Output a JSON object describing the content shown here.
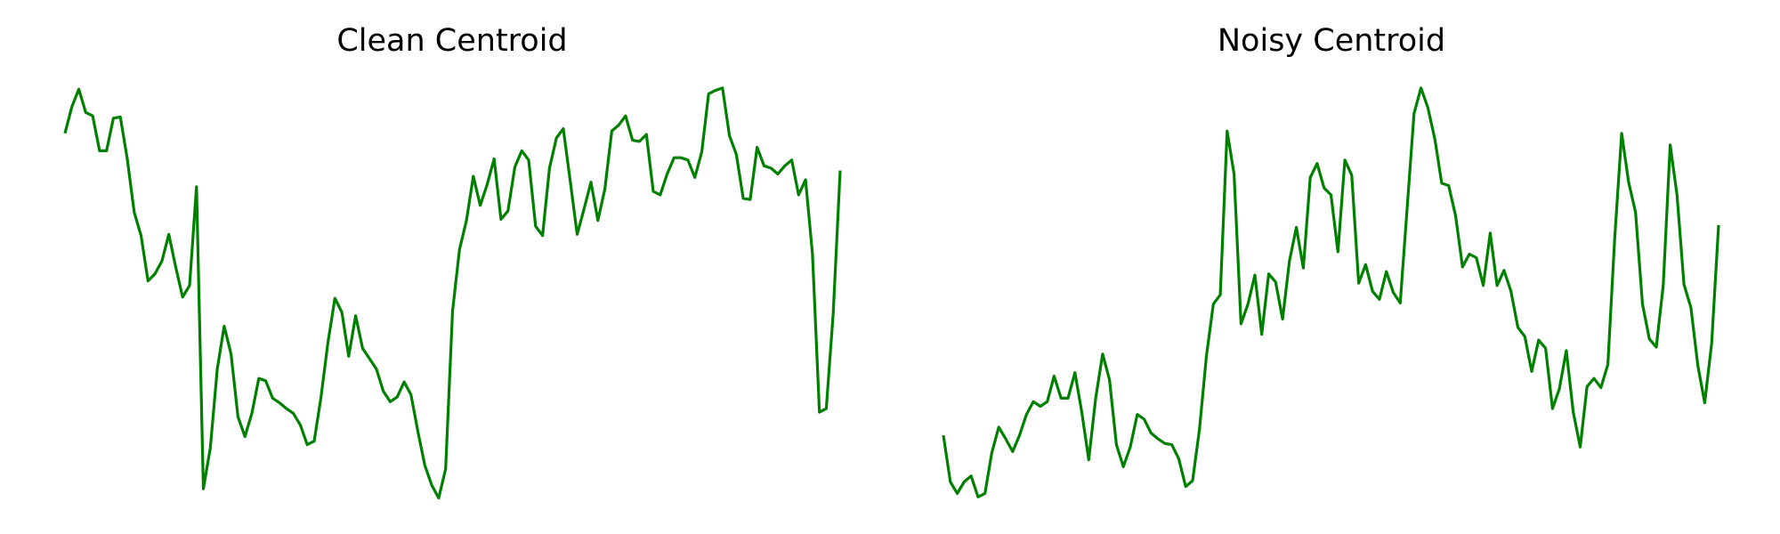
{
  "chart_data": [
    {
      "type": "line",
      "title": "Clean Centroid",
      "color": "#008000",
      "ylim": [
        0,
        380
      ],
      "values": [
        325,
        348,
        363,
        343,
        340,
        310,
        310,
        338,
        339,
        303,
        257,
        237,
        198,
        204,
        215,
        238,
        210,
        184,
        194,
        279,
        19,
        54,
        122,
        159,
        135,
        81,
        64,
        84,
        114,
        112,
        97,
        93,
        88,
        84,
        74,
        57,
        60,
        98,
        145,
        183,
        171,
        133,
        168,
        140,
        131,
        122,
        103,
        94,
        98,
        111,
        100,
        68,
        39,
        22,
        11,
        36,
        172,
        225,
        250,
        288,
        263,
        281,
        303,
        251,
        258,
        296,
        310,
        302,
        245,
        237,
        295,
        321,
        329,
        284,
        238,
        260,
        283,
        250,
        277,
        327,
        332,
        340,
        319,
        318,
        324,
        275,
        272,
        290,
        304,
        304,
        302,
        287,
        309,
        359,
        362,
        364,
        323,
        307,
        269,
        268,
        313,
        297,
        295,
        290,
        297,
        302,
        272,
        285,
        221,
        85,
        88,
        170,
        293
      ]
    },
    {
      "type": "line",
      "title": "Noisy Centroid",
      "color": "#008000",
      "ylim": [
        0,
        380
      ],
      "values": [
        65,
        25,
        15,
        25,
        30,
        12,
        15,
        50,
        72,
        62,
        51,
        65,
        83,
        94,
        90,
        94,
        116,
        97,
        97,
        119,
        85,
        44,
        97,
        135,
        113,
        57,
        38,
        55,
        83,
        79,
        67,
        62,
        58,
        57,
        45,
        21,
        26,
        70,
        133,
        178,
        186,
        327,
        290,
        161,
        178,
        203,
        152,
        204,
        197,
        165,
        215,
        244,
        209,
        287,
        299,
        278,
        272,
        223,
        302,
        289,
        196,
        212,
        189,
        182,
        206,
        188,
        179,
        260,
        342,
        364,
        347,
        320,
        282,
        280,
        254,
        210,
        221,
        218,
        194,
        239,
        194,
        207,
        189,
        158,
        150,
        120,
        147,
        140,
        88,
        105,
        138,
        85,
        55,
        107,
        114,
        106,
        126,
        235,
        325,
        283,
        257,
        178,
        148,
        141,
        194,
        315,
        272,
        195,
        175,
        125,
        93,
        144,
        246
      ]
    }
  ]
}
